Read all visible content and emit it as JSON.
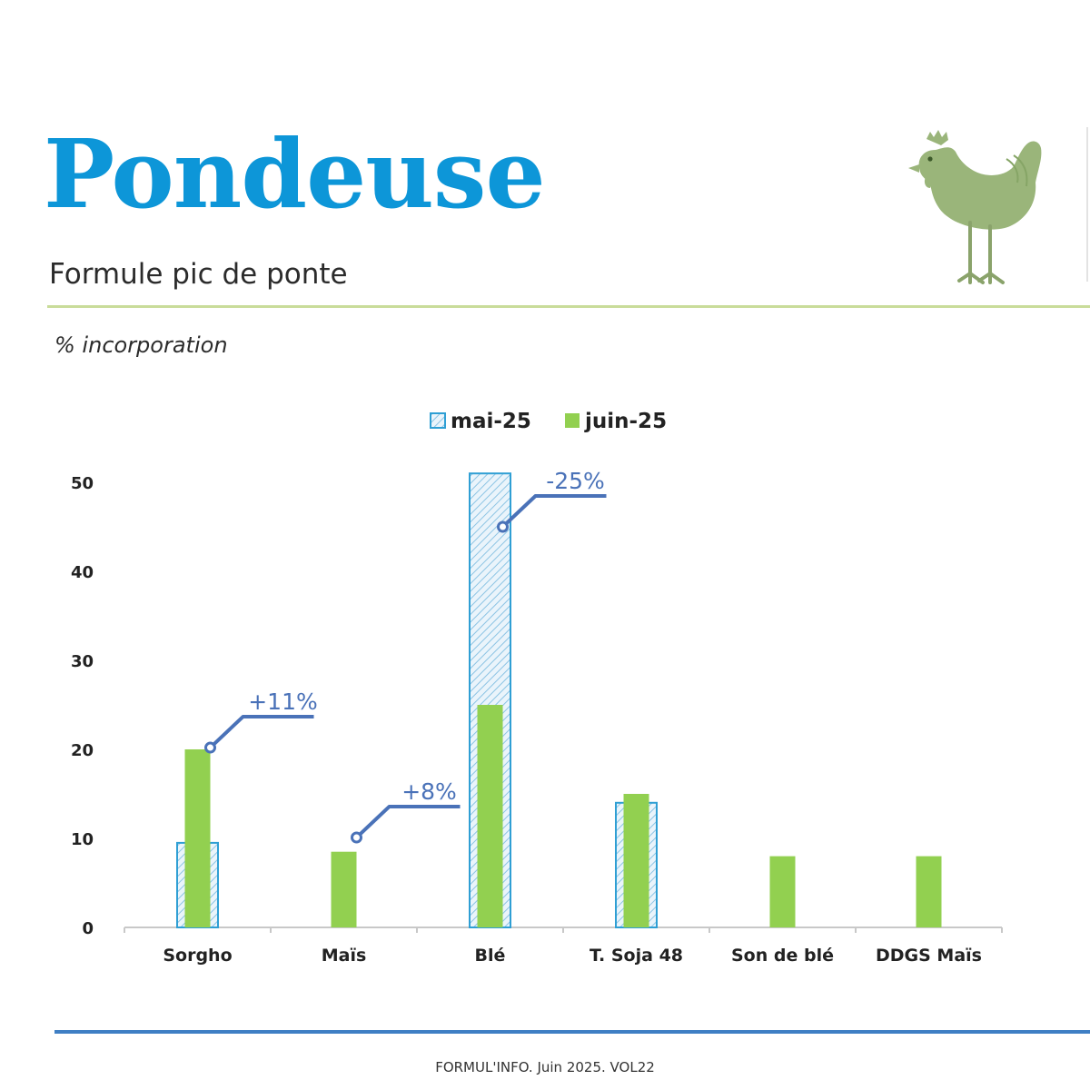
{
  "header": {
    "title": "Pondeuse",
    "subtitle": "Formule pic de ponte",
    "unit_label": "% incorporation"
  },
  "illustration": {
    "icon": "hen-icon"
  },
  "colors": {
    "title": "#0d96d8",
    "mai_series": "#2f9fd4",
    "juin_series": "#92d050",
    "annotation": "#4a72b8",
    "hen": "#9ab57a"
  },
  "chart_data": {
    "type": "bar",
    "categories": [
      "Sorgho",
      "Maïs",
      "Blé",
      "T. Soja 48",
      "Son de blé",
      "DDGS Maïs"
    ],
    "series": [
      {
        "name": "mai-25",
        "values": [
          9.5,
          null,
          51,
          14,
          null,
          null
        ],
        "style": "hatched outline"
      },
      {
        "name": "juin-25",
        "values": [
          20,
          8.5,
          25,
          15,
          8,
          8
        ],
        "style": "solid"
      }
    ],
    "ylim": [
      0,
      50
    ],
    "yticks": [
      0,
      10,
      20,
      30,
      40,
      50
    ],
    "legend_position": "top-center",
    "grid": false,
    "annotations": [
      {
        "category": "Sorgho",
        "text": "+11%",
        "y": 20.2
      },
      {
        "category": "Maïs",
        "text": "+8%",
        "y": 10.1
      },
      {
        "category": "Blé",
        "text": "-25%",
        "y": 45
      }
    ]
  },
  "footer": {
    "text": "FORMUL'INFO. Juin 2025. VOL22"
  }
}
